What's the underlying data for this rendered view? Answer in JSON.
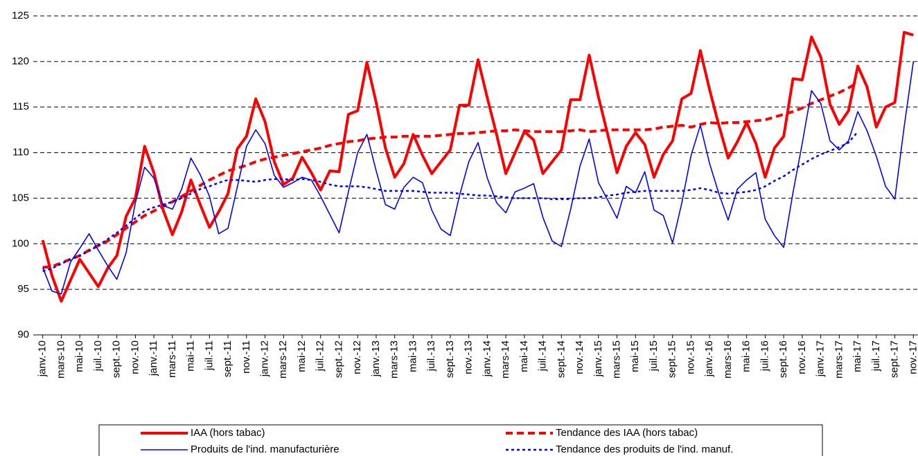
{
  "chart_data": {
    "type": "line",
    "categories": [
      "janv.-10",
      null,
      "mars-10",
      null,
      "mai-10",
      null,
      "juil.-10",
      null,
      "sept.-10",
      null,
      "nov.-10",
      null,
      "janv.-11",
      null,
      "mars-11",
      null,
      "mai-11",
      null,
      "juil.-11",
      null,
      "sept.-11",
      null,
      "nov.-11",
      null,
      "janv.-12",
      null,
      "mars-12",
      null,
      "mai-12",
      null,
      "juil.-12",
      null,
      "sept.-12",
      null,
      "nov.-12",
      null,
      "janv.-13",
      null,
      "mars-13",
      null,
      "mai-13",
      null,
      "juil.-13",
      null,
      "sept.-13",
      null,
      "nov.-13",
      null,
      "janv.-14",
      null,
      "mars-14",
      null,
      "mai-14",
      null,
      "juil.-14",
      null,
      "sept.-14",
      null,
      "nov.-14",
      null,
      "janv.-15",
      null,
      "mars-15",
      null,
      "mai-15",
      null,
      "juil.-15",
      null,
      "sept.-15",
      null,
      "nov.-15",
      null,
      "janv.-16",
      null,
      "mars-16",
      null,
      "mai-16",
      null,
      "juil.-16",
      null,
      "sept.-16",
      null,
      "nov.-16",
      null,
      "janv.-17",
      null,
      "mars-17",
      null,
      "mai-17",
      null,
      "juil.-17",
      null,
      "sept.-17",
      null,
      "nov.-17"
    ],
    "series": [
      {
        "name": "IAA (hors tabac)",
        "color": "#ff0000",
        "line_style": "solid",
        "values": [
          100.4,
          96.5,
          93.7,
          96,
          98.3,
          96.8,
          95.3,
          97.3,
          98.7,
          103,
          105,
          110.7,
          107.8,
          103.7,
          101,
          103.5,
          107,
          104.3,
          101.8,
          103.5,
          105.5,
          110.4,
          111.8,
          115.9,
          113.4,
          109,
          106.5,
          107.2,
          109.5,
          107.8,
          105.9,
          108,
          107.9,
          114.2,
          114.6,
          119.9,
          115.5,
          110.5,
          107.3,
          108.8,
          112,
          109.7,
          107.7,
          109,
          110.3,
          115.2,
          115.2,
          120.2,
          116,
          112,
          107.7,
          110,
          112.3,
          111.4,
          107.7,
          109,
          110.3,
          115.8,
          115.8,
          120.7,
          116.1,
          112,
          107.8,
          110.7,
          112.2,
          110.9,
          107.3,
          109.8,
          111.3,
          115.9,
          116.5,
          121.2,
          116.9,
          113,
          109.4,
          111.2,
          113.3,
          111,
          107.3,
          110.5,
          111.8,
          118.1,
          118,
          122.7,
          120.5,
          115.3,
          113.1,
          114.6,
          119.5,
          117.2,
          112.8,
          115,
          115.5,
          123.2,
          122.9
        ]
      },
      {
        "name": "Tendance des IAA (hors tabac)",
        "color": "#ff0000",
        "line_style": "dashed",
        "values": [
          97.4,
          97.5,
          97.9,
          98.3,
          98.7,
          99.3,
          99.8,
          100.3,
          101,
          101.7,
          102.4,
          103.1,
          103.6,
          104.1,
          104.6,
          105.2,
          105.8,
          106.4,
          107,
          107.5,
          108,
          108.3,
          108.6,
          109,
          109.3,
          109.5,
          109.7,
          109.9,
          110.1,
          110.3,
          110.5,
          110.8,
          111,
          111.2,
          111.3,
          111.5,
          111.6,
          111.7,
          111.7,
          111.8,
          111.8,
          111.8,
          111.8,
          111.9,
          112,
          112.1,
          112.1,
          112.2,
          112.3,
          112.4,
          112.4,
          112.5,
          112.4,
          112.3,
          112.3,
          112.3,
          112.3,
          112.4,
          112.5,
          112.3,
          112.4,
          112.5,
          112.5,
          112.5,
          112.5,
          112.5,
          112.6,
          112.8,
          112.9,
          113,
          112.8,
          113.1,
          113.3,
          113.2,
          113.3,
          113.3,
          113.4,
          113.5,
          113.6,
          113.9,
          114.2,
          114.5,
          114.9,
          115.4,
          115.8,
          116.2,
          116.6,
          117.1,
          117.7,
          null,
          null,
          null,
          null,
          null,
          null
        ]
      },
      {
        "name": "Produits de l'ind. manufacturière",
        "color": "#0000ff",
        "line_style": "solid",
        "values": [
          97.4,
          94.8,
          94.5,
          98,
          99.5,
          101.1,
          99.3,
          97.6,
          96.1,
          99,
          104.5,
          108.4,
          107.2,
          104.2,
          103.8,
          106,
          109.4,
          107.6,
          105.2,
          101.1,
          101.7,
          106.2,
          110.7,
          112.5,
          111,
          107.5,
          106.2,
          106.7,
          107.3,
          107,
          105.2,
          103.2,
          101.2,
          105.7,
          110,
          112,
          108,
          104.3,
          103.8,
          106.2,
          107.3,
          106.7,
          103.7,
          101.6,
          100.9,
          105.3,
          109,
          111.1,
          107.2,
          104.5,
          103.4,
          105.7,
          106.1,
          106.6,
          102.9,
          100.3,
          99.7,
          103.8,
          108.5,
          111.5,
          106.7,
          104.8,
          102.8,
          106.3,
          105.6,
          107.9,
          103.7,
          103.1,
          100.1,
          104.5,
          109.7,
          113,
          108.8,
          105.5,
          102.6,
          106,
          107,
          107.8,
          102.7,
          100.9,
          99.6,
          105.6,
          111,
          116.8,
          115.4,
          111.3,
          110.3,
          111.3,
          114.5,
          112.4,
          109.6,
          106.3,
          104.9,
          112.8,
          120
        ]
      },
      {
        "name": "Tendance des produits de l'ind. manuf.",
        "color": "#0000ff",
        "line_style": "dotted",
        "values": [
          97,
          97.3,
          97.8,
          98.3,
          98.7,
          99.2,
          99.8,
          100.5,
          101.2,
          102,
          102.8,
          103.6,
          104,
          104.3,
          104.6,
          105,
          105.5,
          106,
          106.3,
          106.7,
          107,
          107,
          106.9,
          106.8,
          107,
          107.1,
          107.1,
          107,
          107.1,
          107,
          106.8,
          106.5,
          106.3,
          106.3,
          106.3,
          106.2,
          106,
          105.8,
          105.8,
          105.8,
          105.8,
          105.7,
          105.6,
          105.6,
          105.6,
          105.5,
          105.4,
          105.3,
          105.3,
          105.2,
          105.1,
          105,
          105,
          105,
          105,
          104.9,
          104.9,
          104.9,
          105,
          105,
          105.1,
          105.3,
          105.4,
          105.6,
          105.7,
          105.8,
          105.8,
          105.8,
          105.8,
          105.8,
          105.9,
          106.1,
          105.9,
          105.6,
          105.5,
          105.6,
          105.7,
          105.9,
          106.3,
          106.9,
          107.4,
          108.1,
          108.7,
          109.3,
          109.8,
          110.2,
          110.6,
          111.1,
          112.3,
          null,
          null,
          null,
          null,
          null,
          null
        ]
      }
    ],
    "ylim": [
      90,
      125
    ],
    "yticks": [
      90,
      95,
      100,
      105,
      110,
      115,
      120,
      125
    ],
    "grid": true
  }
}
